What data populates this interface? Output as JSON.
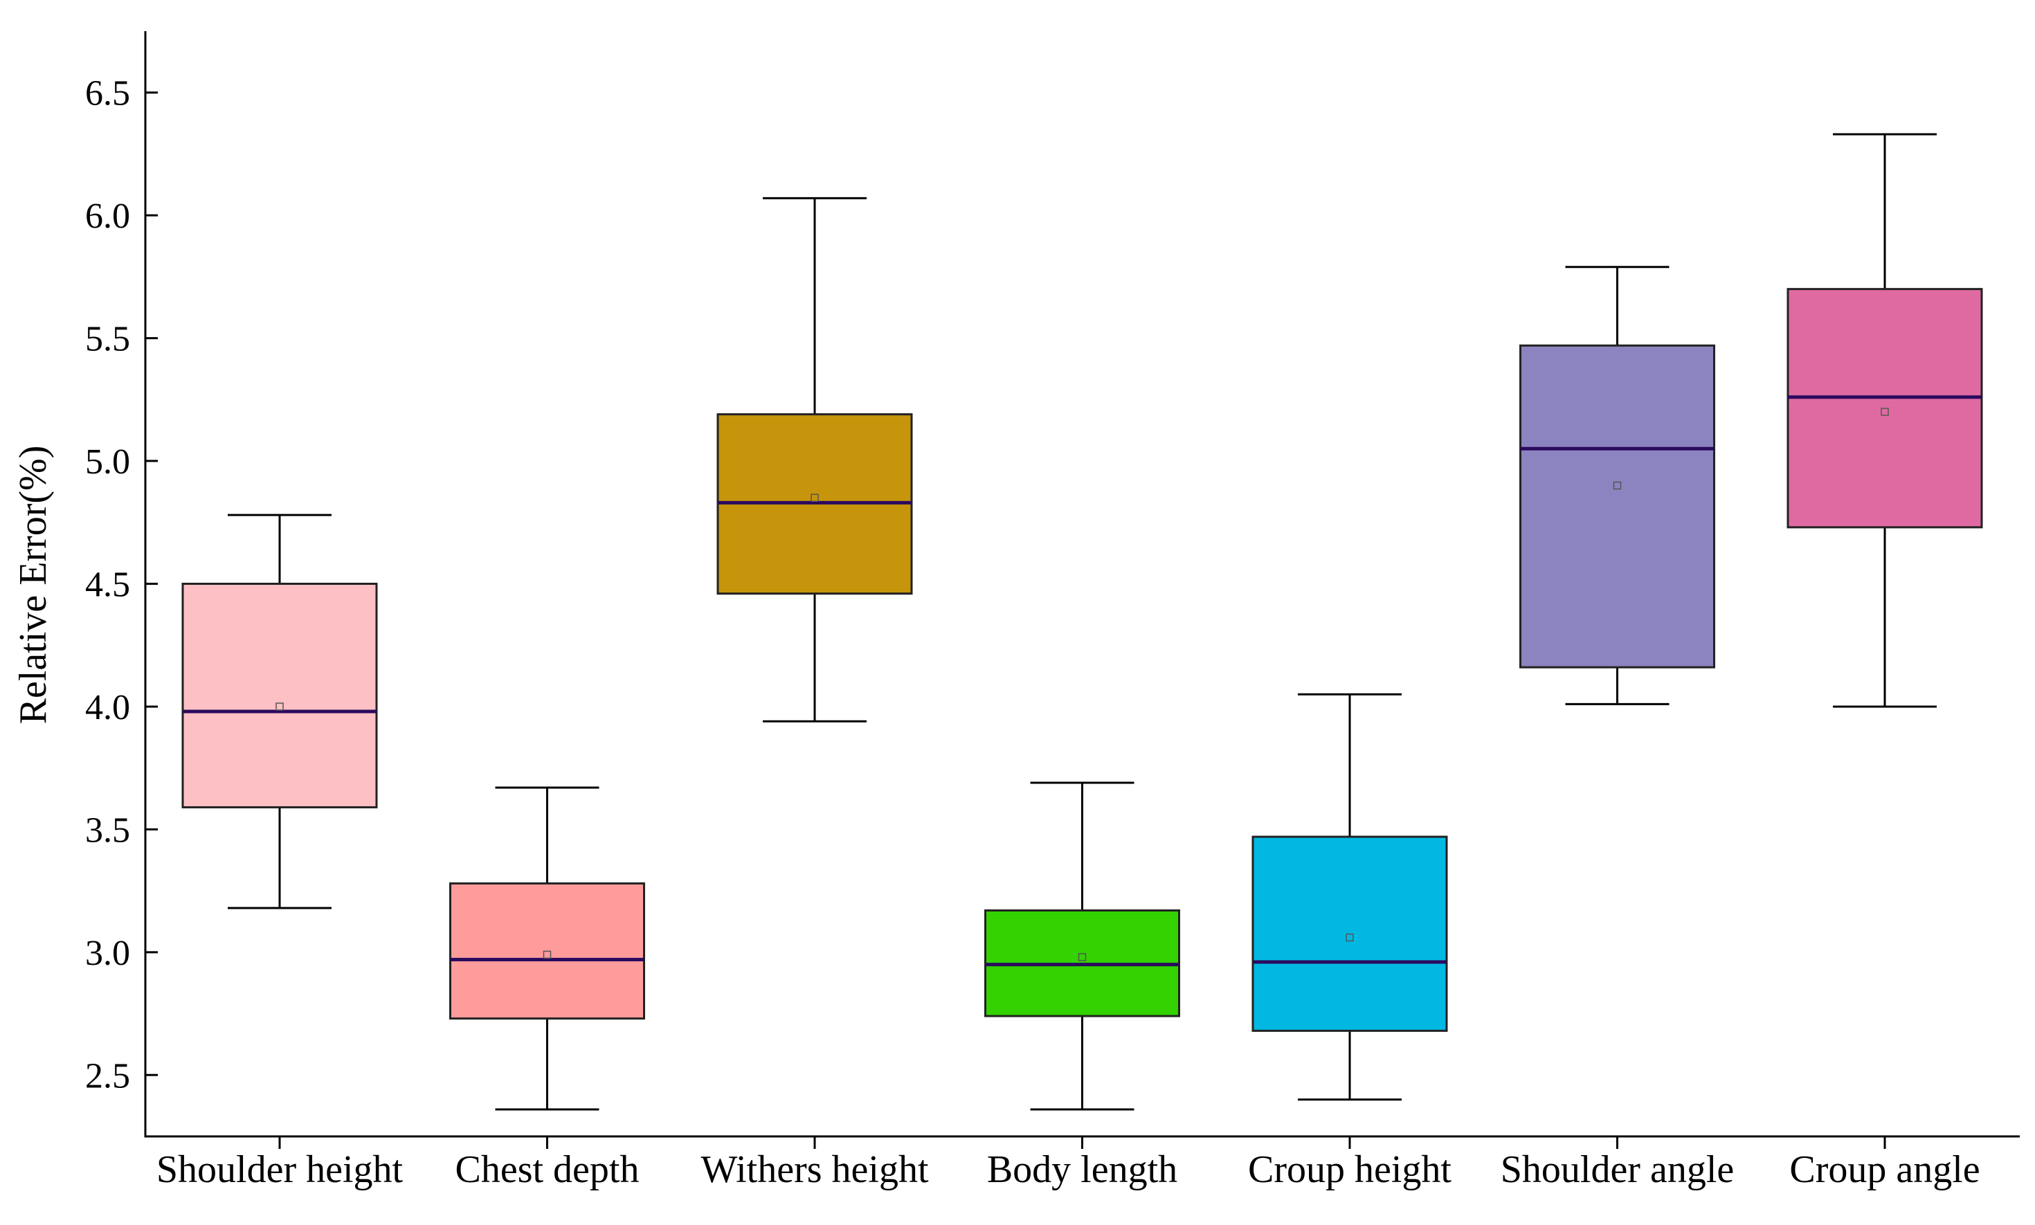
{
  "chart_data": {
    "type": "box",
    "title": "",
    "xlabel": "",
    "ylabel": "Relative Error(%)",
    "ylim": [
      2.25,
      6.75
    ],
    "yticks": [
      "2.5",
      "3.0",
      "3.5",
      "4.0",
      "4.5",
      "5.0",
      "5.5",
      "6.0",
      "6.5"
    ],
    "grid": false,
    "categories": [
      "Shoulder height",
      "Chest depth",
      "Withers height",
      "Body length",
      "Croup height",
      "Shoulder angle",
      "Croup angle"
    ],
    "boxes": [
      {
        "name": "Shoulder height",
        "min": 3.18,
        "q1": 3.59,
        "median": 3.98,
        "q3": 4.5,
        "max": 4.78,
        "mean": 4.0,
        "color": "#fdc0c4"
      },
      {
        "name": "Chest depth",
        "min": 2.36,
        "q1": 2.73,
        "median": 2.97,
        "q3": 3.28,
        "max": 3.67,
        "mean": 2.99,
        "color": "#fe9b9b"
      },
      {
        "name": "Withers height",
        "min": 3.94,
        "q1": 4.46,
        "median": 4.83,
        "q3": 5.19,
        "max": 6.07,
        "mean": 4.85,
        "color": "#c6950b"
      },
      {
        "name": "Body length",
        "min": 2.36,
        "q1": 2.74,
        "median": 2.95,
        "q3": 3.17,
        "max": 3.69,
        "mean": 2.98,
        "color": "#33d200"
      },
      {
        "name": "Croup height",
        "min": 2.4,
        "q1": 2.68,
        "median": 2.96,
        "q3": 3.47,
        "max": 4.05,
        "mean": 3.06,
        "color": "#01b8e2"
      },
      {
        "name": "Shoulder angle",
        "min": 4.01,
        "q1": 4.16,
        "median": 5.05,
        "q3": 5.47,
        "max": 5.79,
        "mean": 4.9,
        "color": "#8c84c0"
      },
      {
        "name": "Croup angle",
        "min": 4.0,
        "q1": 4.73,
        "median": 5.26,
        "q3": 5.7,
        "max": 6.33,
        "mean": 5.2,
        "color": "#df6aa2"
      }
    ],
    "median_color": "#2a0a5e"
  }
}
